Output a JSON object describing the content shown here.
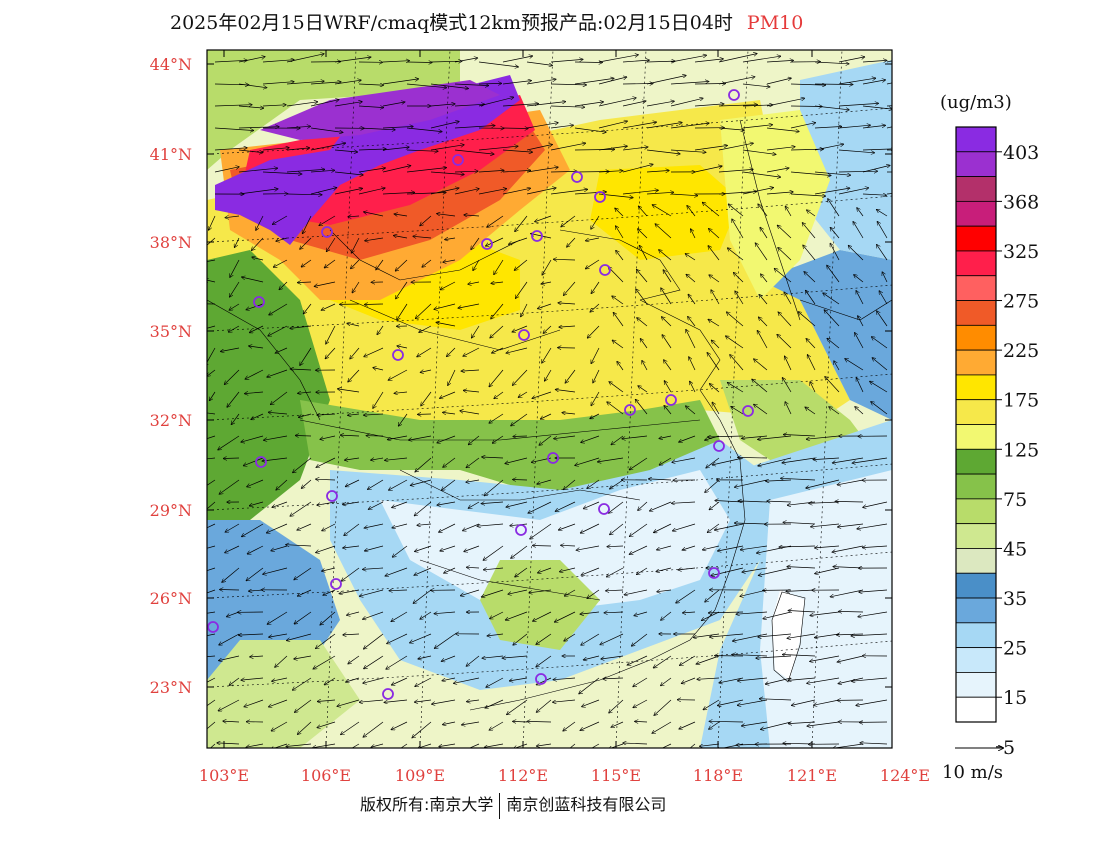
{
  "title": {
    "main": "2025年02月15日WRF/cmaq模式12km预报产品:02月15日04时",
    "pollutant": "PM10"
  },
  "lat_labels": [
    "44°N",
    "41°N",
    "38°N",
    "35°N",
    "32°N",
    "29°N",
    "26°N",
    "23°N"
  ],
  "lon_labels": [
    "103°E",
    "106°E",
    "109°E",
    "112°E",
    "115°E",
    "118°E",
    "121°E",
    "124°E"
  ],
  "colorbar": {
    "unit": "(ug/m3)",
    "labels": [
      "403",
      "368",
      "325",
      "275",
      "225",
      "175",
      "125",
      "75",
      "45",
      "35",
      "25",
      "15",
      "5"
    ],
    "colors": [
      "#8a2be2",
      "#9b30d0",
      "#b3306a",
      "#c81e7a",
      "#ff0000",
      "#ff1f4b",
      "#ff6060",
      "#f05a28",
      "#ff8c00",
      "#ffaa33",
      "#ffe600",
      "#f6e84a",
      "#f2f871",
      "#5ea833",
      "#86c24a",
      "#b8dc6a",
      "#cfe890",
      "#dce8c0",
      "#4a8fc8",
      "#6aa8dc",
      "#a6d8f4",
      "#c8e8fa",
      "#e6f4fc",
      "#ffffff"
    ],
    "wind_ref": "10 m/s"
  },
  "stations": 25,
  "copyright": {
    "left": "版权所有:南京大学",
    "right": "南京创蓝科技有限公司"
  }
}
